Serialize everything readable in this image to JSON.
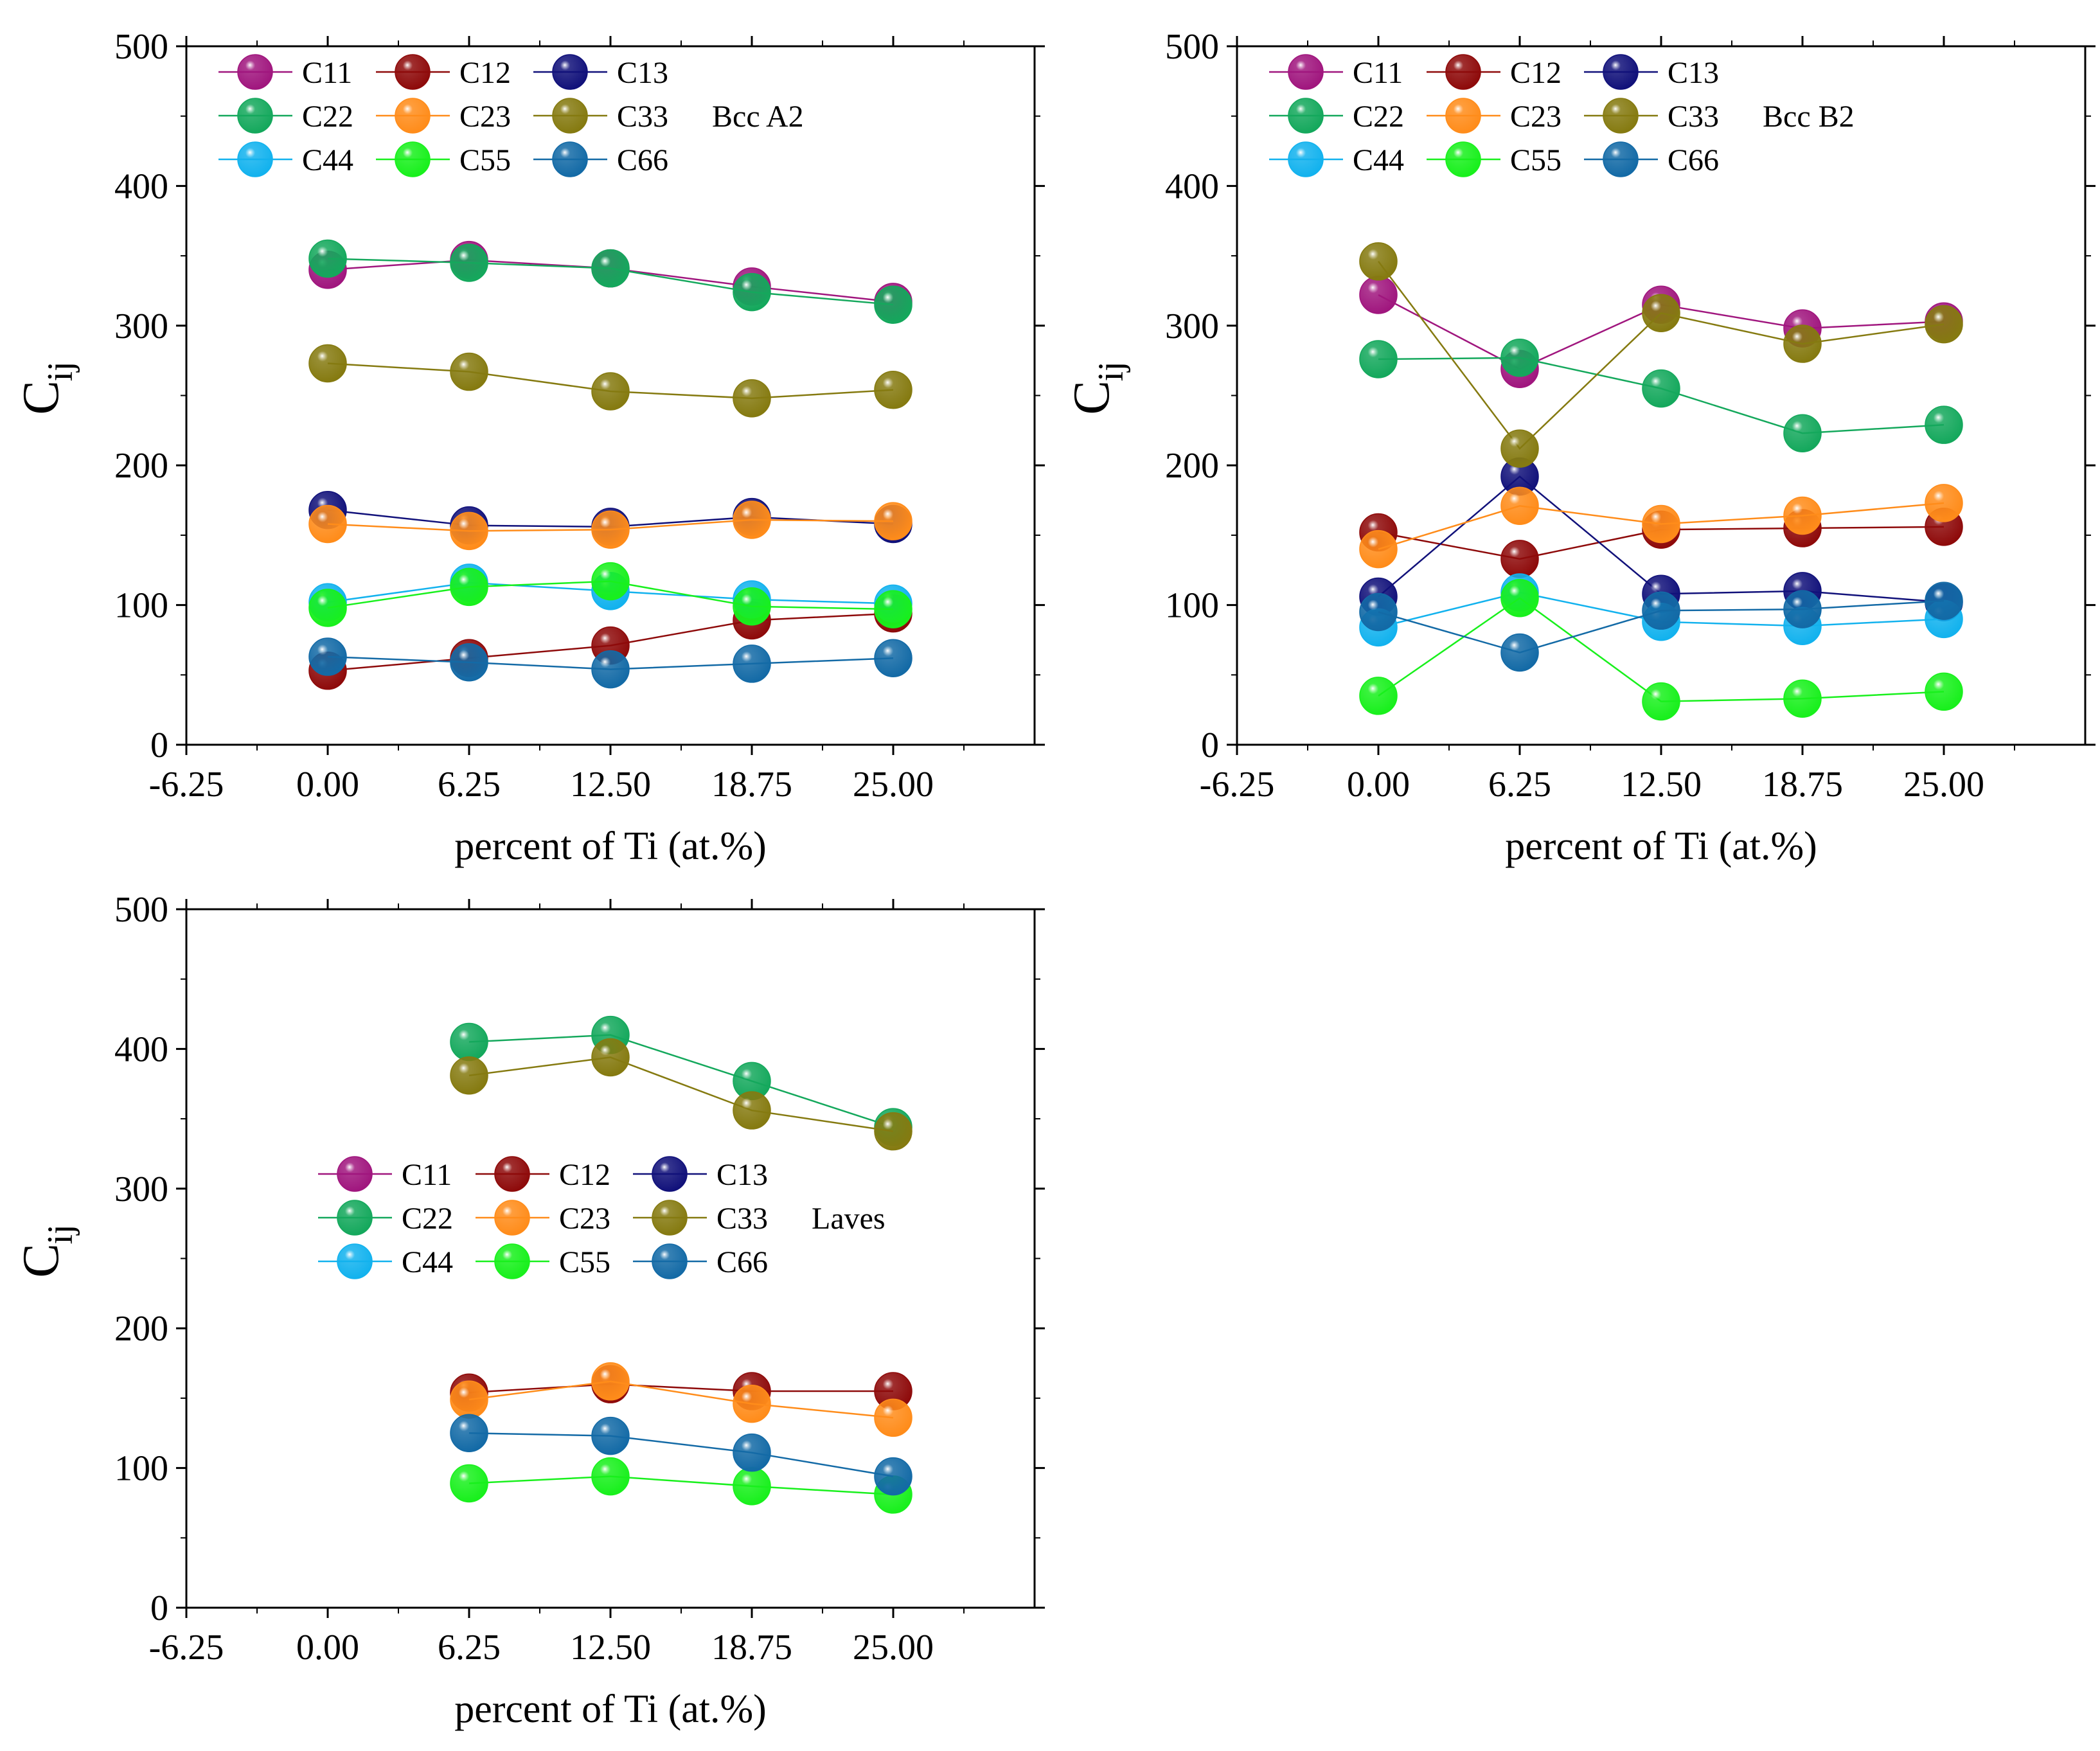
{
  "colors": {
    "C11": "#a0167e",
    "C12": "#8e0a0a",
    "C13": "#11117a",
    "C22": "#14a85c",
    "C23": "#ff8c1a",
    "C33": "#857a10",
    "C44": "#12b2ee",
    "C55": "#18f01c",
    "C66": "#136aa6"
  },
  "legend_labels": [
    "C11",
    "C12",
    "C13",
    "C22",
    "C23",
    "C33",
    "C44",
    "C55",
    "C66"
  ],
  "chart_data": [
    {
      "type": "line",
      "id": "bcc-a2",
      "annotation": "Bcc A2",
      "xlabel": "percent of Ti (at.%)",
      "ylabel": "C",
      "ylabel_sub": "ij",
      "x": [
        0,
        6.25,
        12.5,
        18.75,
        25
      ],
      "xlim": [
        -6.25,
        31.25
      ],
      "ylim": [
        0,
        500
      ],
      "x_ticks": [
        "-6.25",
        "0.00",
        "6.25",
        "12.50",
        "18.75",
        "25.00"
      ],
      "y_ticks": [
        "0",
        "100",
        "200",
        "300",
        "400",
        "500"
      ],
      "legend_position": "top-left",
      "series": [
        {
          "name": "C11",
          "values": [
            340,
            347,
            341,
            328,
            317
          ]
        },
        {
          "name": "C12",
          "values": [
            53,
            62,
            71,
            89,
            94
          ]
        },
        {
          "name": "C13",
          "values": [
            168,
            157,
            156,
            163,
            158
          ]
        },
        {
          "name": "C22",
          "values": [
            348,
            345,
            341,
            324,
            315
          ]
        },
        {
          "name": "C23",
          "values": [
            158,
            153,
            154,
            161,
            160
          ]
        },
        {
          "name": "C33",
          "values": [
            273,
            267,
            253,
            248,
            254
          ]
        },
        {
          "name": "C44",
          "values": [
            102,
            116,
            110,
            104,
            101
          ]
        },
        {
          "name": "C55",
          "values": [
            98,
            113,
            117,
            99,
            97
          ]
        },
        {
          "name": "C66",
          "values": [
            63,
            59,
            54,
            58,
            62
          ]
        }
      ]
    },
    {
      "type": "line",
      "id": "bcc-b2",
      "annotation": "Bcc B2",
      "xlabel": "percent of Ti (at.%)",
      "ylabel": "C",
      "ylabel_sub": "ij",
      "x": [
        0,
        6.25,
        12.5,
        18.75,
        25
      ],
      "xlim": [
        -6.25,
        31.25
      ],
      "ylim": [
        0,
        500
      ],
      "x_ticks": [
        "-6.25",
        "0.00",
        "6.25",
        "12.50",
        "18.75",
        "25.00"
      ],
      "y_ticks": [
        "0",
        "100",
        "200",
        "300",
        "400",
        "500"
      ],
      "legend_position": "top-left",
      "series": [
        {
          "name": "C11",
          "values": [
            322,
            269,
            315,
            298,
            303
          ]
        },
        {
          "name": "C12",
          "values": [
            152,
            133,
            154,
            155,
            156
          ]
        },
        {
          "name": "C13",
          "values": [
            106,
            192,
            108,
            110,
            102
          ]
        },
        {
          "name": "C22",
          "values": [
            276,
            277,
            255,
            223,
            229
          ]
        },
        {
          "name": "C23",
          "values": [
            140,
            171,
            158,
            164,
            173
          ]
        },
        {
          "name": "C33",
          "values": [
            346,
            212,
            309,
            287,
            301
          ]
        },
        {
          "name": "C44",
          "values": [
            84,
            109,
            88,
            85,
            90
          ]
        },
        {
          "name": "C55",
          "values": [
            35,
            105,
            31,
            33,
            38
          ]
        },
        {
          "name": "C66",
          "values": [
            95,
            66,
            96,
            97,
            103
          ]
        }
      ]
    },
    {
      "type": "line",
      "id": "laves",
      "annotation": "Laves",
      "xlabel": "percent of Ti (at.%)",
      "ylabel": "C",
      "ylabel_sub": "ij",
      "x": [
        6.25,
        12.5,
        18.75,
        25
      ],
      "xlim": [
        -6.25,
        31.25
      ],
      "ylim": [
        0,
        500
      ],
      "x_ticks": [
        "-6.25",
        "0.00",
        "6.25",
        "12.50",
        "18.75",
        "25.00"
      ],
      "y_ticks": [
        "0",
        "100",
        "200",
        "300",
        "400",
        "500"
      ],
      "legend_position": "center-left",
      "series": [
        {
          "name": "C11",
          "values": [
            null,
            null,
            null,
            null
          ]
        },
        {
          "name": "C12",
          "values": [
            154,
            160,
            155,
            155
          ]
        },
        {
          "name": "C13",
          "values": [
            null,
            null,
            null,
            null
          ]
        },
        {
          "name": "C22",
          "values": [
            405,
            410,
            377,
            344
          ]
        },
        {
          "name": "C23",
          "values": [
            149,
            162,
            146,
            136
          ]
        },
        {
          "name": "C33",
          "values": [
            381,
            394,
            356,
            341
          ]
        },
        {
          "name": "C44",
          "values": [
            null,
            null,
            null,
            null
          ]
        },
        {
          "name": "C55",
          "values": [
            89,
            94,
            87,
            81
          ]
        },
        {
          "name": "C66",
          "values": [
            125,
            123,
            111,
            94
          ]
        }
      ]
    }
  ]
}
